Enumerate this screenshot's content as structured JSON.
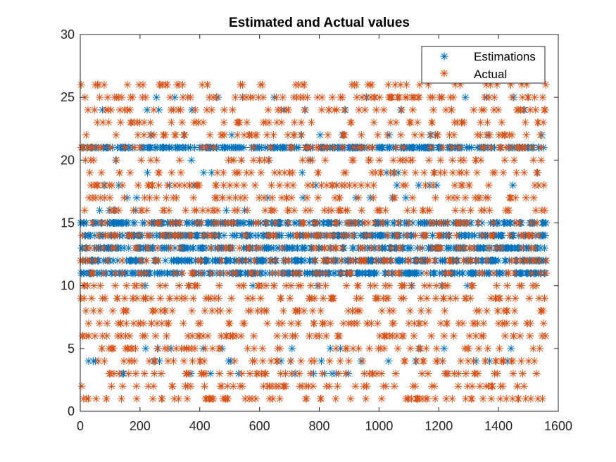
{
  "colors": {
    "estimations": "#0072BD",
    "actual": "#D95319",
    "axis": "#262626",
    "background": "#ffffff"
  },
  "chart_data": {
    "type": "scatter",
    "title": "Estimated and Actual values",
    "xlabel": "",
    "ylabel": "",
    "xlim": [
      0,
      1600
    ],
    "ylim": [
      0,
      30
    ],
    "x_ticks": [
      "0",
      "200",
      "400",
      "600",
      "800",
      "1000",
      "1200",
      "1400",
      "1600"
    ],
    "y_ticks": [
      "0",
      "5",
      "10",
      "15",
      "20",
      "25",
      "30"
    ],
    "grid": false,
    "legend_position": "top-right",
    "marker": "asterisk",
    "n_points": 1560,
    "series": [
      {
        "name": "Estimations",
        "color": "#0072BD",
        "x_range": [
          1,
          1560
        ],
        "y_values_observed": [
          3,
          4,
          5,
          10,
          11,
          12,
          13,
          14,
          15,
          16,
          17,
          18,
          19,
          20,
          21,
          22,
          24,
          25
        ],
        "dominant_y_values": [
          11,
          12,
          13,
          14,
          15,
          21
        ]
      },
      {
        "name": "Actual",
        "color": "#D95319",
        "x_range": [
          1,
          1560
        ],
        "y_values_observed": [
          1,
          2,
          3,
          4,
          5,
          6,
          7,
          8,
          9,
          10,
          11,
          12,
          13,
          14,
          15,
          16,
          17,
          18,
          19,
          20,
          21,
          22,
          23,
          24,
          25,
          26
        ]
      }
    ]
  }
}
